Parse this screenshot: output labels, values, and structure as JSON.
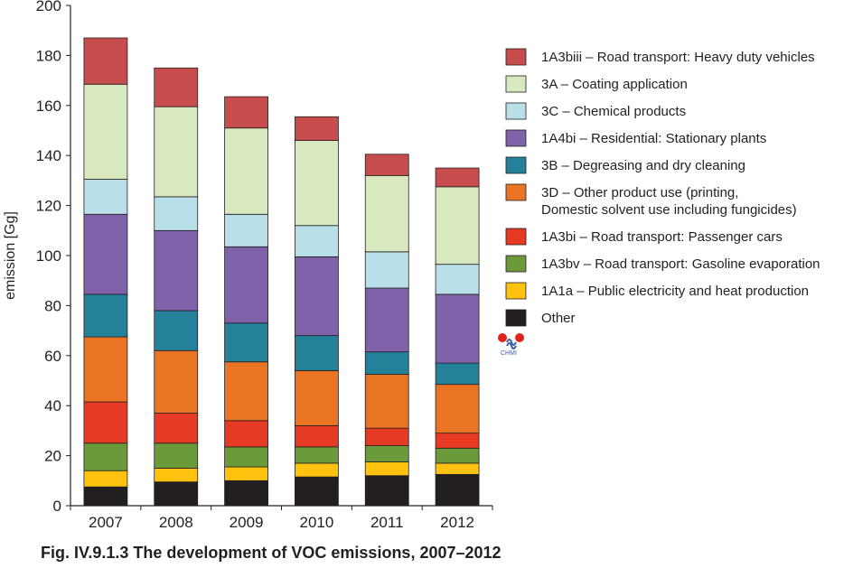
{
  "chart_data": {
    "type": "bar",
    "stacked": true,
    "categories": [
      "2007",
      "2008",
      "2009",
      "2010",
      "2011",
      "2012"
    ],
    "ylabel": "emission [Gg]",
    "ylim": [
      0,
      200
    ],
    "yticks": [
      0,
      20,
      40,
      60,
      80,
      100,
      120,
      140,
      160,
      180,
      200
    ],
    "grid": false,
    "legend_position": "right",
    "series": [
      {
        "name": "Other",
        "color": "#231f20",
        "values": [
          7.5,
          9.5,
          10.0,
          11.5,
          12.0,
          12.5
        ]
      },
      {
        "name": "1A1a – Public electricity and heat production",
        "color": "#ffc20e",
        "values": [
          6.5,
          5.5,
          5.5,
          5.5,
          5.5,
          4.5
        ]
      },
      {
        "name": "1A3bv – Road transport: Gasoline evaporation",
        "color": "#6b9a3a",
        "values": [
          11.0,
          10.0,
          8.0,
          6.5,
          6.5,
          6.0
        ]
      },
      {
        "name": "1A3bi – Road transport: Passenger cars",
        "color": "#e63a24",
        "values": [
          16.5,
          12.0,
          10.5,
          8.5,
          7.0,
          6.0
        ]
      },
      {
        "name": "3D – Other product use (printing,\nDomestic solvent use including fungicides)",
        "color": "#ea7424",
        "values": [
          26.0,
          25.0,
          23.5,
          22.0,
          21.5,
          19.5
        ]
      },
      {
        "name": "3B – Degreasing and dry cleaning",
        "color": "#24819a",
        "values": [
          17.0,
          16.0,
          15.5,
          14.0,
          9.0,
          8.5
        ]
      },
      {
        "name": "1A4bi  – Residential: Stationary plants",
        "color": "#7f62aa",
        "values": [
          32.0,
          32.0,
          30.5,
          31.5,
          25.5,
          27.5
        ]
      },
      {
        "name": "3C – Chemical products",
        "color": "#b9e0e8",
        "values": [
          14.0,
          13.5,
          13.0,
          12.5,
          14.5,
          12.0
        ]
      },
      {
        "name": "3A – Coating application",
        "color": "#d8e8bf",
        "values": [
          38.0,
          36.0,
          34.5,
          34.0,
          30.5,
          31.0
        ]
      },
      {
        "name": "1A3biii – Road transport: Heavy duty vehicles",
        "color": "#c74d4d",
        "values": [
          18.5,
          15.5,
          12.5,
          9.5,
          8.5,
          7.5
        ]
      }
    ],
    "legend_order": [
      9,
      8,
      7,
      6,
      5,
      4,
      3,
      2,
      1,
      0
    ]
  },
  "caption": "Fig. IV.9.1.3  The development of VOC emissions, 2007–2012",
  "logo": {
    "text": "CHMI",
    "icon": "chmi-logo-icon",
    "colors": [
      "#e2231a",
      "#3b5ea8"
    ]
  }
}
